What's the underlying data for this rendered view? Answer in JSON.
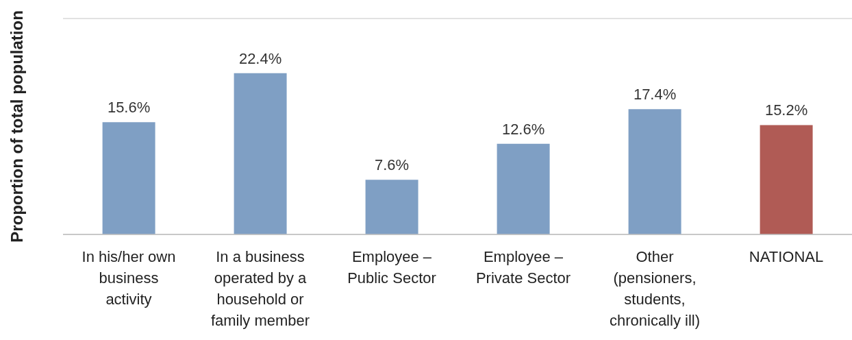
{
  "chart_data": {
    "type": "bar",
    "ylabel": "Proportion of total population",
    "categories": [
      "In his/her own business activity",
      "In a business operated by a household or family member",
      "Employee – Public Sector",
      "Employee – Private Sector",
      "Other (pensioners, students, chronically ill)",
      "NATIONAL"
    ],
    "values": [
      15.6,
      22.4,
      7.6,
      12.6,
      17.4,
      15.2
    ],
    "value_labels": [
      "15.6%",
      "22.4%",
      "7.6%",
      "12.6%",
      "17.4%",
      "15.2%"
    ],
    "colors": [
      "#7f9fc4",
      "#7f9fc4",
      "#7f9fc4",
      "#7f9fc4",
      "#7f9fc4",
      "#b05b55"
    ],
    "ylim": [
      0,
      30
    ],
    "grid": "y",
    "tick_labels": "x"
  }
}
